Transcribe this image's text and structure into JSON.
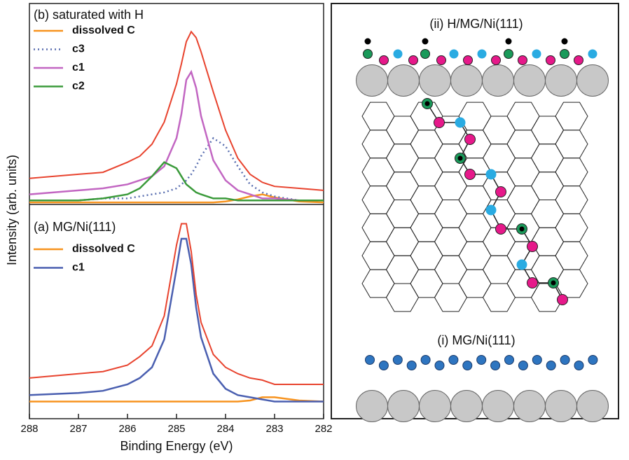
{
  "chart_data": [
    {
      "type": "line",
      "panel_label": "(b) saturated with H",
      "xlim": [
        288,
        282
      ],
      "ylim": [
        0,
        100
      ],
      "x": [
        288,
        287,
        286.5,
        286,
        285.75,
        285.5,
        285.25,
        285,
        284.9,
        284.8,
        284.7,
        284.6,
        284.5,
        284.25,
        284,
        283.75,
        283.5,
        283.25,
        283,
        282.5,
        282
      ],
      "series": [
        {
          "name": "dissolved C",
          "color": "#f7931e",
          "style": "solid",
          "values": [
            1,
            1,
            1,
            1,
            1,
            1,
            1,
            1,
            1,
            1,
            1,
            1,
            1,
            1,
            1.5,
            2.5,
            4,
            5,
            3.5,
            1.5,
            1
          ]
        },
        {
          "name": "c3",
          "color": "#5a6fb0",
          "style": "dotted",
          "values": [
            2,
            2,
            3,
            3,
            4,
            5,
            6,
            8,
            10,
            12,
            15,
            19,
            24,
            33,
            29,
            19,
            10,
            6,
            4,
            2,
            2
          ]
        },
        {
          "name": "c1",
          "color": "#c266c2",
          "style": "solid",
          "values": [
            5,
            7,
            8,
            10,
            12,
            14,
            19,
            33,
            45,
            62,
            66,
            58,
            44,
            22,
            12,
            7,
            5,
            3,
            3,
            2,
            2
          ]
        },
        {
          "name": "c2",
          "color": "#3a9a3a",
          "style": "solid",
          "values": [
            2,
            2,
            3,
            5,
            8,
            14,
            21,
            18,
            14,
            10,
            8,
            6,
            5,
            3,
            3,
            2,
            2,
            2,
            2,
            2,
            2
          ]
        },
        {
          "color": "#e8432e",
          "style": "solid",
          "values": [
            13,
            15,
            16,
            21,
            24,
            30,
            41,
            60,
            70,
            81,
            86,
            83,
            76,
            56,
            37,
            23,
            15,
            11,
            9,
            8,
            7
          ]
        }
      ]
    },
    {
      "type": "line",
      "panel_label": "(a) MG/Ni(111)",
      "xlim": [
        288,
        282
      ],
      "ylim": [
        0,
        100
      ],
      "xticks": [
        288,
        287,
        286,
        285,
        284,
        283,
        282
      ],
      "xlabel": "Binding Energy (eV)",
      "ylabel": "Intensity (arb. units)",
      "x": [
        288,
        287,
        286.5,
        286,
        285.75,
        285.5,
        285.25,
        285,
        284.9,
        284.8,
        284.7,
        284.6,
        284.5,
        284.25,
        284,
        283.75,
        283.5,
        283.25,
        283,
        282.5,
        282
      ],
      "series": [
        {
          "name": "dissolved C",
          "color": "#f7931e",
          "style": "solid",
          "values": [
            8,
            8,
            8,
            8,
            8,
            8,
            8,
            8,
            8,
            8,
            8,
            8,
            8,
            8,
            8,
            8,
            8.5,
            10,
            10,
            8.5,
            8
          ]
        },
        {
          "name": "c1",
          "color": "#4a5fb0",
          "style": "solid",
          "values": [
            11,
            12,
            13,
            16,
            19,
            24,
            37,
            70,
            84,
            84,
            72,
            52,
            38,
            21,
            14,
            11,
            10,
            9,
            8,
            8,
            8
          ]
        },
        {
          "color": "#e8432e",
          "style": "solid",
          "values": [
            19,
            21,
            22,
            25,
            29,
            34,
            48,
            81,
            91,
            91,
            78,
            58,
            45,
            30,
            24,
            21,
            19,
            18,
            16,
            16,
            16
          ]
        }
      ]
    }
  ],
  "diagram": {
    "top_label": "(ii) H/MG/Ni(111)",
    "bottom_label": "(i) MG/Ni(111)"
  }
}
